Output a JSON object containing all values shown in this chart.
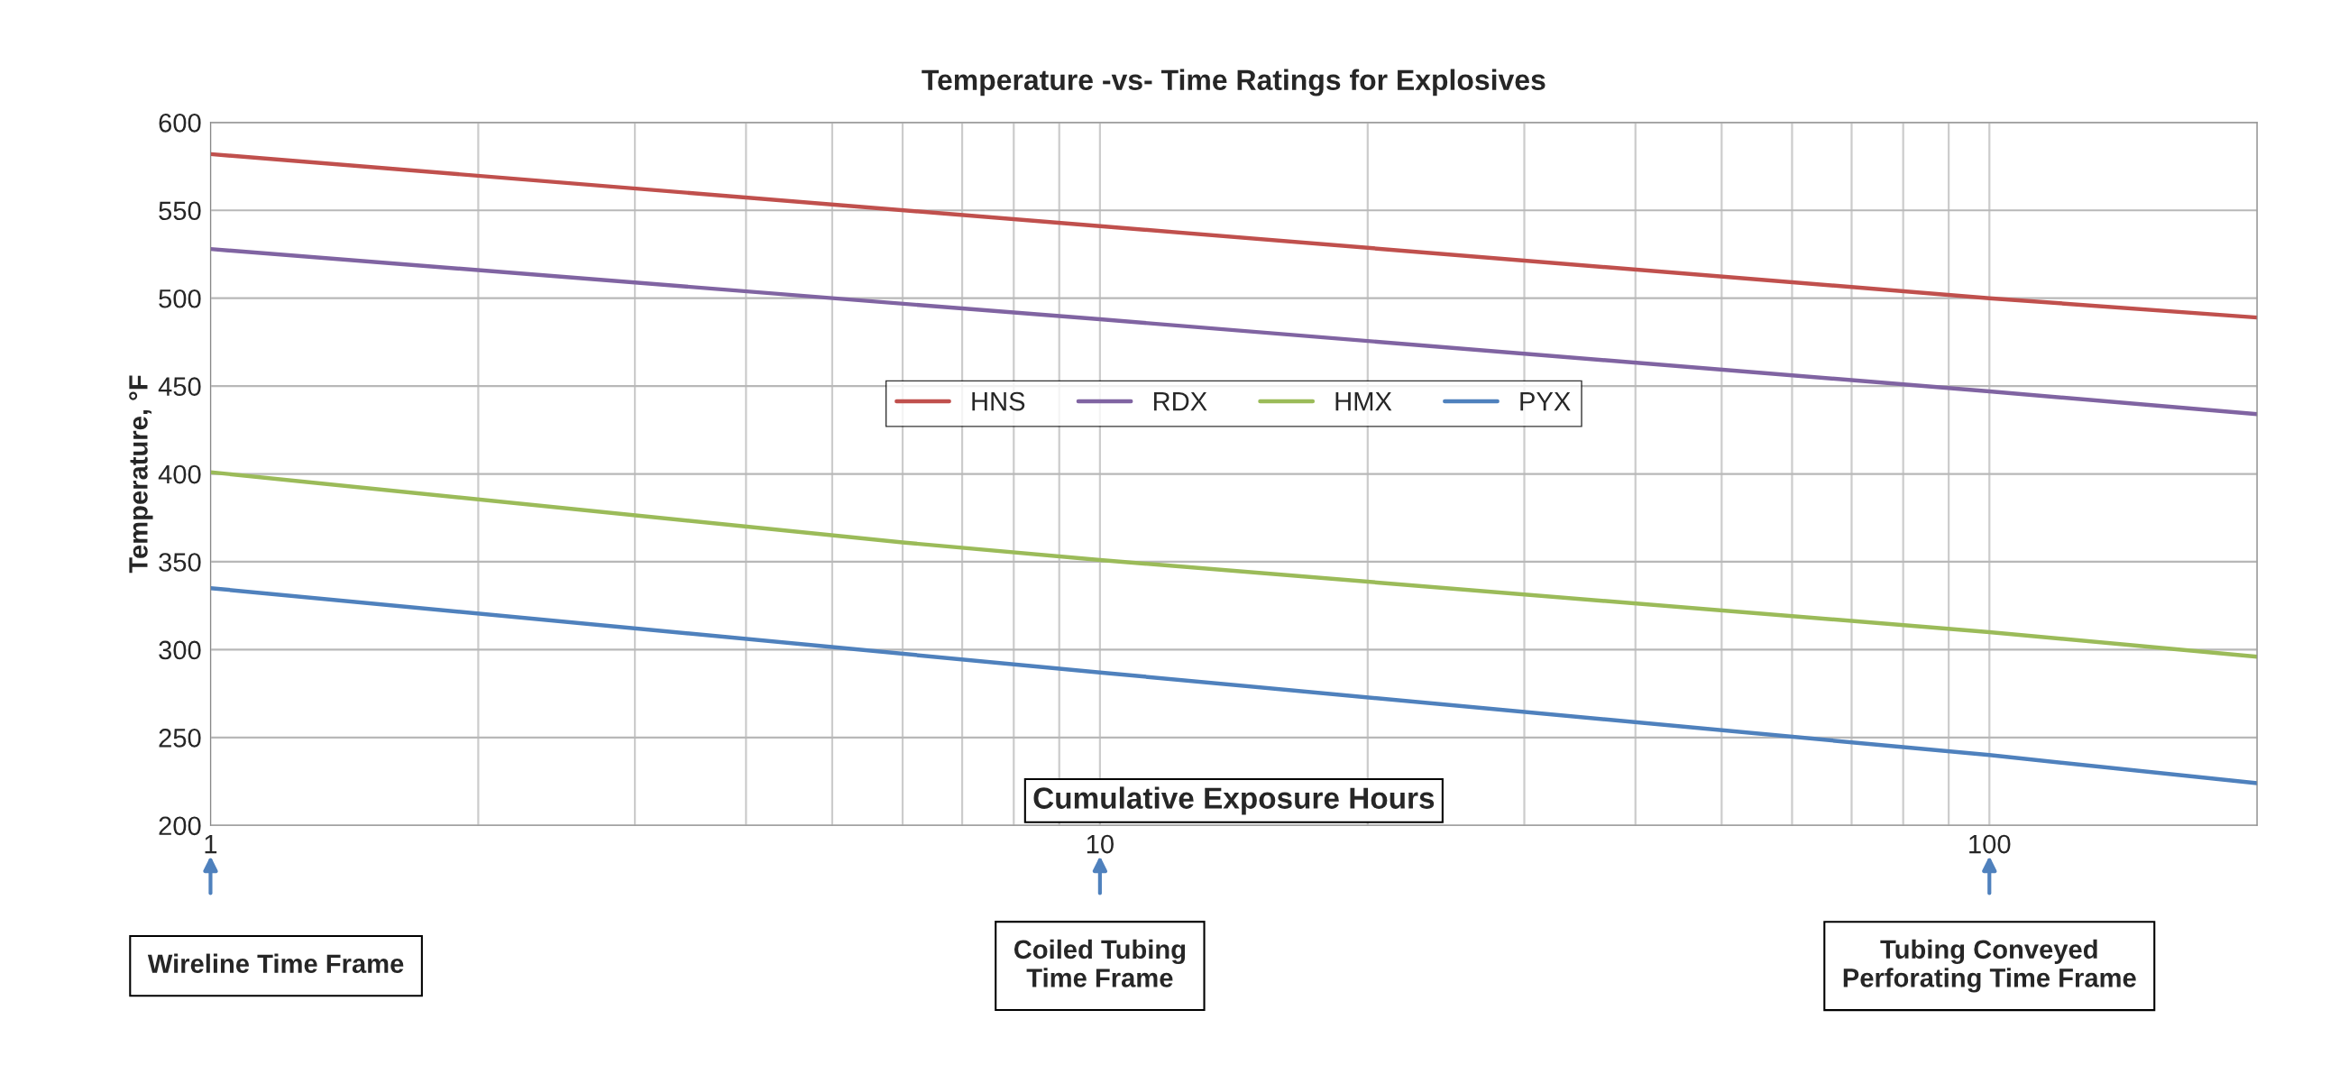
{
  "chart_data": {
    "type": "line",
    "title": "Temperature -vs- Time Ratings for Explosives",
    "xlabel": "Cumulative Exposure Hours",
    "ylabel": "Temperature, °F",
    "log": "x",
    "xlim": [
      1,
      200
    ],
    "xticks": [
      1,
      10,
      100
    ],
    "ylim": [
      200,
      600
    ],
    "yticks": [
      200,
      250,
      300,
      350,
      400,
      450,
      500,
      550,
      600
    ],
    "grid": true,
    "legend": "center",
    "marker": "none",
    "line_style": "solid",
    "series": [
      {
        "name": "HNS",
        "color": "#c0504d",
        "x": [
          1,
          10,
          100,
          200
        ],
        "values": [
          582,
          541,
          500,
          489
        ]
      },
      {
        "name": "RDX",
        "color": "#8064a2",
        "x": [
          1,
          10,
          100,
          200
        ],
        "values": [
          528,
          488,
          447,
          434
        ]
      },
      {
        "name": "HMX",
        "color": "#9bbb59",
        "x": [
          1,
          6,
          10,
          100,
          200
        ],
        "values": [
          401,
          361,
          351,
          310,
          296
        ]
      },
      {
        "name": "PYX",
        "color": "#4f81bd",
        "x": [
          1,
          10,
          100,
          200
        ],
        "values": [
          335,
          287,
          240,
          224
        ]
      }
    ],
    "annotations": [
      "Wireline Time Frame",
      "Coiled Tubing\nTime Frame",
      "Tubing Conveyed\nPerforating Time Frame"
    ]
  }
}
